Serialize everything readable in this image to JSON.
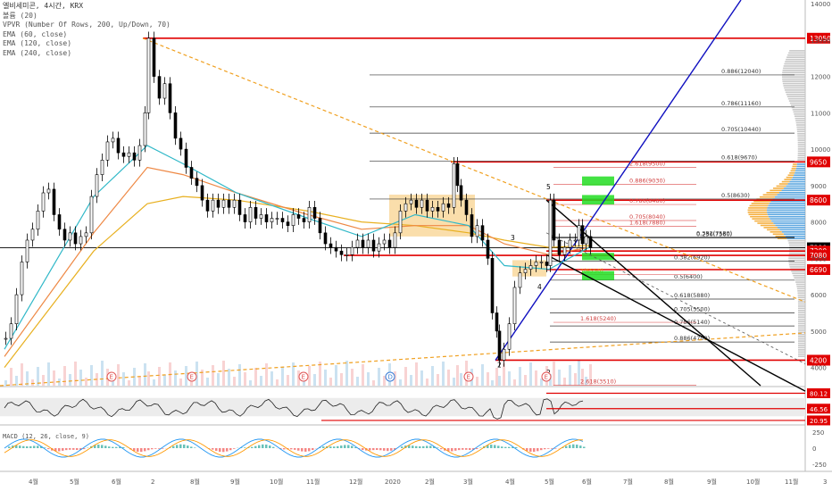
{
  "chart_data": {
    "type": "line",
    "symbol": "엘비세미콘, 4시간, KRX",
    "indicators": [
      "볼륨 (20)",
      "VPVR (Number Of Rows, 200, Up/Down, 70)",
      "EMA (60, close)",
      "EMA (120, close)",
      "EMA (240, close)"
    ],
    "ylim": [
      3500,
      14100
    ],
    "y_ticks": [
      4000,
      5000,
      6000,
      7000,
      8000,
      9000,
      10000,
      11000,
      12000,
      13000,
      14000
    ],
    "x_ticks": [
      "4월",
      "5월",
      "6월",
      "2",
      "8월",
      "9월",
      "10월",
      "11월",
      "12월",
      "2020",
      "2월",
      "3월",
      "4월",
      "5월",
      "6월",
      "7월",
      "8월",
      "9월",
      "10월",
      "11월",
      "3"
    ],
    "price_series": [
      [
        0,
        4800
      ],
      [
        6,
        5200
      ],
      [
        12,
        6000
      ],
      [
        18,
        6900
      ],
      [
        24,
        7500
      ],
      [
        30,
        7800
      ],
      [
        36,
        8300
      ],
      [
        42,
        8800
      ],
      [
        48,
        8900
      ],
      [
        54,
        8200
      ],
      [
        60,
        7800
      ],
      [
        66,
        7500
      ],
      [
        72,
        7700
      ],
      [
        78,
        7400
      ],
      [
        84,
        7600
      ],
      [
        90,
        7700
      ],
      [
        96,
        8700
      ],
      [
        102,
        9300
      ],
      [
        108,
        9700
      ],
      [
        114,
        10200
      ],
      [
        120,
        10300
      ],
      [
        126,
        9900
      ],
      [
        132,
        9800
      ],
      [
        138,
        9900
      ],
      [
        144,
        9700
      ],
      [
        150,
        10100
      ],
      [
        156,
        11000
      ],
      [
        160,
        13050
      ],
      [
        166,
        12000
      ],
      [
        172,
        11400
      ],
      [
        178,
        11800
      ],
      [
        184,
        11000
      ],
      [
        190,
        10300
      ],
      [
        196,
        10000
      ],
      [
        202,
        9500
      ],
      [
        208,
        9200
      ],
      [
        214,
        9000
      ],
      [
        220,
        8600
      ],
      [
        226,
        8300
      ],
      [
        232,
        8600
      ],
      [
        238,
        8400
      ],
      [
        244,
        8600
      ],
      [
        250,
        8400
      ],
      [
        256,
        8600
      ],
      [
        262,
        8200
      ],
      [
        268,
        8000
      ],
      [
        274,
        8400
      ],
      [
        280,
        8100
      ],
      [
        286,
        8200
      ],
      [
        292,
        8000
      ],
      [
        298,
        8100
      ],
      [
        304,
        8100
      ],
      [
        310,
        8000
      ],
      [
        316,
        7900
      ],
      [
        322,
        8200
      ],
      [
        328,
        8100
      ],
      [
        334,
        8000
      ],
      [
        340,
        8400
      ],
      [
        346,
        8100
      ],
      [
        352,
        7700
      ],
      [
        358,
        7400
      ],
      [
        364,
        7300
      ],
      [
        370,
        7200
      ],
      [
        376,
        7100
      ],
      [
        382,
        7100
      ],
      [
        388,
        7300
      ],
      [
        394,
        7500
      ],
      [
        400,
        7300
      ],
      [
        406,
        7500
      ],
      [
        412,
        7200
      ],
      [
        418,
        7400
      ],
      [
        424,
        7500
      ],
      [
        430,
        7300
      ],
      [
        436,
        7700
      ],
      [
        442,
        8300
      ],
      [
        448,
        8500
      ],
      [
        454,
        8600
      ],
      [
        460,
        8400
      ],
      [
        466,
        8600
      ],
      [
        472,
        8300
      ],
      [
        478,
        8400
      ],
      [
        484,
        8300
      ],
      [
        490,
        8500
      ],
      [
        496,
        8400
      ],
      [
        502,
        9600
      ],
      [
        506,
        9000
      ],
      [
        510,
        8600
      ],
      [
        516,
        8200
      ],
      [
        522,
        7600
      ],
      [
        528,
        7900
      ],
      [
        534,
        7500
      ],
      [
        540,
        7000
      ],
      [
        545,
        5500
      ],
      [
        550,
        5000
      ],
      [
        553,
        4200
      ],
      [
        558,
        4500
      ],
      [
        564,
        5200
      ],
      [
        570,
        6200
      ],
      [
        576,
        6600
      ],
      [
        582,
        6700
      ],
      [
        588,
        6800
      ],
      [
        594,
        6900
      ],
      [
        600,
        6900
      ],
      [
        606,
        6800
      ],
      [
        610,
        8600
      ],
      [
        614,
        7500
      ],
      [
        620,
        7100
      ],
      [
        626,
        7300
      ],
      [
        632,
        7500
      ],
      [
        638,
        7500
      ],
      [
        642,
        7900
      ],
      [
        646,
        7400
      ],
      [
        650,
        7600
      ],
      [
        655,
        7290
      ]
    ],
    "ema_60": [
      [
        0,
        4500
      ],
      [
        100,
        8700
      ],
      [
        160,
        10100
      ],
      [
        200,
        9600
      ],
      [
        260,
        8800
      ],
      [
        340,
        8100
      ],
      [
        400,
        7600
      ],
      [
        460,
        8200
      ],
      [
        520,
        7900
      ],
      [
        560,
        6800
      ],
      [
        610,
        6700
      ],
      [
        655,
        7300
      ]
    ],
    "ema_120": [
      [
        0,
        4300
      ],
      [
        100,
        7700
      ],
      [
        160,
        9500
      ],
      [
        200,
        9300
      ],
      [
        260,
        8800
      ],
      [
        340,
        8200
      ],
      [
        400,
        7800
      ],
      [
        460,
        7900
      ],
      [
        520,
        7900
      ],
      [
        560,
        7400
      ],
      [
        610,
        7100
      ],
      [
        655,
        7300
      ]
    ],
    "ema_240": [
      [
        0,
        4000
      ],
      [
        100,
        7200
      ],
      [
        160,
        8500
      ],
      [
        200,
        8700
      ],
      [
        260,
        8600
      ],
      [
        340,
        8300
      ],
      [
        400,
        8000
      ],
      [
        460,
        7900
      ],
      [
        520,
        7700
      ],
      [
        560,
        7500
      ],
      [
        610,
        7300
      ],
      [
        655,
        7350
      ]
    ],
    "horizontal_levels": [
      {
        "price": 13050,
        "label": "13050",
        "color": "#e00000"
      },
      {
        "price": 9650,
        "label": "9650",
        "color": "#e00000"
      },
      {
        "price": 8600,
        "label": "8600",
        "color": "#e00000"
      },
      {
        "price": 7290,
        "label": "7290",
        "color": "#000000"
      },
      {
        "price": 7200,
        "label": "7200",
        "color": "#e00000"
      },
      {
        "price": 7080,
        "label": "7080",
        "color": "#e00000"
      },
      {
        "price": 6690,
        "label": "6690",
        "color": "#e00000"
      },
      {
        "price": 4200,
        "label": "4200",
        "color": "#e00000"
      }
    ],
    "fib_black": [
      {
        "price": 12040,
        "label": "0.886(12040)"
      },
      {
        "price": 11160,
        "label": "0.786(11160)"
      },
      {
        "price": 10440,
        "label": "0.705(10440)"
      },
      {
        "price": 9670,
        "label": "0.618(9670)"
      },
      {
        "price": 8630,
        "label": "0.5(8630)"
      },
      {
        "price": 7580,
        "label": "0.382(7580)"
      },
      {
        "price": 7560,
        "label": "0.236(7560)"
      },
      {
        "price": 6920,
        "label": "0.382(6920)"
      },
      {
        "price": 6400,
        "label": "0.5(6400)"
      },
      {
        "price": 5880,
        "label": "0.618(5880)"
      },
      {
        "price": 5500,
        "label": "0.705(5500)"
      },
      {
        "price": 5140,
        "label": "0.786(5140)"
      },
      {
        "price": 4700,
        "label": "0.886(4700)"
      }
    ],
    "fib_colored": [
      {
        "price": 9500,
        "label": "2.618(9500)"
      },
      {
        "price": 9030,
        "label": "0.886(9030)"
      },
      {
        "price": 8480,
        "label": "0.786(8480)"
      },
      {
        "price": 8040,
        "label": "0.705(8040)"
      },
      {
        "price": 7880,
        "label": "1.618(7880)"
      },
      {
        "price": 6550,
        "label": "1(6550)"
      },
      {
        "price": 5240,
        "label": "1.618(5240)"
      },
      {
        "price": 3510,
        "label": "2.618(3510)"
      }
    ],
    "wave_labels": [
      "5",
      "3",
      "4",
      "2",
      "2"
    ],
    "event_markers": [
      "E",
      "E",
      "E",
      "D",
      "E",
      "E"
    ],
    "rsi": {
      "levels": [
        "80.12",
        "46.56",
        "20.95"
      ]
    },
    "macd": {
      "label": "MACD (12, 26, close, 9)",
      "ticks": [
        "250",
        "0",
        "-250"
      ]
    }
  }
}
